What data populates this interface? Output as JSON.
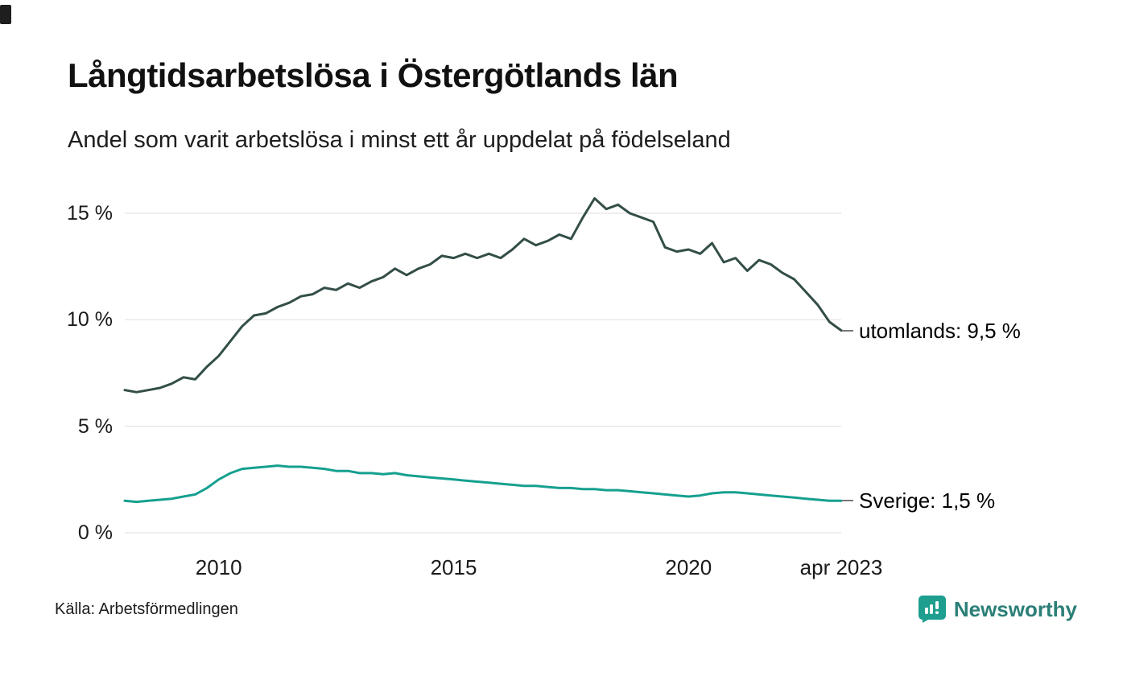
{
  "title": "Långtidsarbetslösa i Östergötlands län",
  "subtitle": "Andel som varit arbetslösa i minst ett år uppdelat på födelseland",
  "source": "Källa: Arbetsförmedlingen",
  "brand": {
    "name": "Newsworthy",
    "text_color": "#2b7f77",
    "logo_color": "#1e9e8e",
    "logo_icon": "bar-chart-speech-bubble-icon"
  },
  "chart_data": {
    "type": "line",
    "title": "Långtidsarbetslösa i Östergötlands län",
    "xlabel": "",
    "ylabel": "",
    "xlim": [
      2008,
      2023.25
    ],
    "ylim": [
      0,
      15
    ],
    "grid": "horizontal",
    "gridline_color": "#dedede",
    "yticks": [
      {
        "value": 15,
        "label": "15 %"
      },
      {
        "value": 10,
        "label": "10 %"
      },
      {
        "value": 5,
        "label": "5 %"
      },
      {
        "value": 0,
        "label": "0 %"
      }
    ],
    "xticks": [
      {
        "value": 2010,
        "label": "2010"
      },
      {
        "value": 2015,
        "label": "2015"
      },
      {
        "value": 2020,
        "label": "2020"
      },
      {
        "value": 2023.25,
        "label": "apr 2023"
      }
    ],
    "series": [
      {
        "name": "utomlands",
        "color": "#334e48",
        "end_label": "utomlands: 9,5 %",
        "end_value": 9.5,
        "points": [
          [
            2008.0,
            6.7
          ],
          [
            2008.25,
            6.6
          ],
          [
            2008.5,
            6.7
          ],
          [
            2008.75,
            6.8
          ],
          [
            2009.0,
            7.0
          ],
          [
            2009.25,
            7.3
          ],
          [
            2009.5,
            7.2
          ],
          [
            2009.75,
            7.8
          ],
          [
            2010.0,
            8.3
          ],
          [
            2010.25,
            9.0
          ],
          [
            2010.5,
            9.7
          ],
          [
            2010.75,
            10.2
          ],
          [
            2011.0,
            10.3
          ],
          [
            2011.25,
            10.6
          ],
          [
            2011.5,
            10.8
          ],
          [
            2011.75,
            11.1
          ],
          [
            2012.0,
            11.2
          ],
          [
            2012.25,
            11.5
          ],
          [
            2012.5,
            11.4
          ],
          [
            2012.75,
            11.7
          ],
          [
            2013.0,
            11.5
          ],
          [
            2013.25,
            11.8
          ],
          [
            2013.5,
            12.0
          ],
          [
            2013.75,
            12.4
          ],
          [
            2014.0,
            12.1
          ],
          [
            2014.25,
            12.4
          ],
          [
            2014.5,
            12.6
          ],
          [
            2014.75,
            13.0
          ],
          [
            2015.0,
            12.9
          ],
          [
            2015.25,
            13.1
          ],
          [
            2015.5,
            12.9
          ],
          [
            2015.75,
            13.1
          ],
          [
            2016.0,
            12.9
          ],
          [
            2016.25,
            13.3
          ],
          [
            2016.5,
            13.8
          ],
          [
            2016.75,
            13.5
          ],
          [
            2017.0,
            13.7
          ],
          [
            2017.25,
            14.0
          ],
          [
            2017.5,
            13.8
          ],
          [
            2017.75,
            14.8
          ],
          [
            2018.0,
            15.7
          ],
          [
            2018.25,
            15.2
          ],
          [
            2018.5,
            15.4
          ],
          [
            2018.75,
            15.0
          ],
          [
            2019.0,
            14.8
          ],
          [
            2019.25,
            14.6
          ],
          [
            2019.5,
            13.4
          ],
          [
            2019.75,
            13.2
          ],
          [
            2020.0,
            13.3
          ],
          [
            2020.25,
            13.1
          ],
          [
            2020.5,
            13.6
          ],
          [
            2020.75,
            12.7
          ],
          [
            2021.0,
            12.9
          ],
          [
            2021.25,
            12.3
          ],
          [
            2021.5,
            12.8
          ],
          [
            2021.75,
            12.6
          ],
          [
            2022.0,
            12.2
          ],
          [
            2022.25,
            11.9
          ],
          [
            2022.5,
            11.3
          ],
          [
            2022.75,
            10.7
          ],
          [
            2023.0,
            9.9
          ],
          [
            2023.25,
            9.5
          ]
        ]
      },
      {
        "name": "Sverige",
        "color": "#16a090",
        "end_label": "Sverige: 1,5 %",
        "end_value": 1.5,
        "points": [
          [
            2008.0,
            1.5
          ],
          [
            2008.25,
            1.45
          ],
          [
            2008.5,
            1.5
          ],
          [
            2008.75,
            1.55
          ],
          [
            2009.0,
            1.6
          ],
          [
            2009.25,
            1.7
          ],
          [
            2009.5,
            1.8
          ],
          [
            2009.75,
            2.1
          ],
          [
            2010.0,
            2.5
          ],
          [
            2010.25,
            2.8
          ],
          [
            2010.5,
            3.0
          ],
          [
            2010.75,
            3.05
          ],
          [
            2011.0,
            3.1
          ],
          [
            2011.25,
            3.15
          ],
          [
            2011.5,
            3.1
          ],
          [
            2011.75,
            3.1
          ],
          [
            2012.0,
            3.05
          ],
          [
            2012.25,
            3.0
          ],
          [
            2012.5,
            2.9
          ],
          [
            2012.75,
            2.9
          ],
          [
            2013.0,
            2.8
          ],
          [
            2013.25,
            2.8
          ],
          [
            2013.5,
            2.75
          ],
          [
            2013.75,
            2.8
          ],
          [
            2014.0,
            2.7
          ],
          [
            2014.25,
            2.65
          ],
          [
            2014.5,
            2.6
          ],
          [
            2014.75,
            2.55
          ],
          [
            2015.0,
            2.5
          ],
          [
            2015.25,
            2.45
          ],
          [
            2015.5,
            2.4
          ],
          [
            2015.75,
            2.35
          ],
          [
            2016.0,
            2.3
          ],
          [
            2016.25,
            2.25
          ],
          [
            2016.5,
            2.2
          ],
          [
            2016.75,
            2.2
          ],
          [
            2017.0,
            2.15
          ],
          [
            2017.25,
            2.1
          ],
          [
            2017.5,
            2.1
          ],
          [
            2017.75,
            2.05
          ],
          [
            2018.0,
            2.05
          ],
          [
            2018.25,
            2.0
          ],
          [
            2018.5,
            2.0
          ],
          [
            2018.75,
            1.95
          ],
          [
            2019.0,
            1.9
          ],
          [
            2019.25,
            1.85
          ],
          [
            2019.5,
            1.8
          ],
          [
            2019.75,
            1.75
          ],
          [
            2020.0,
            1.7
          ],
          [
            2020.25,
            1.75
          ],
          [
            2020.5,
            1.85
          ],
          [
            2020.75,
            1.9
          ],
          [
            2021.0,
            1.9
          ],
          [
            2021.25,
            1.85
          ],
          [
            2021.5,
            1.8
          ],
          [
            2021.75,
            1.75
          ],
          [
            2022.0,
            1.7
          ],
          [
            2022.25,
            1.65
          ],
          [
            2022.5,
            1.6
          ],
          [
            2022.75,
            1.55
          ],
          [
            2023.0,
            1.5
          ],
          [
            2023.25,
            1.5
          ]
        ]
      }
    ]
  }
}
